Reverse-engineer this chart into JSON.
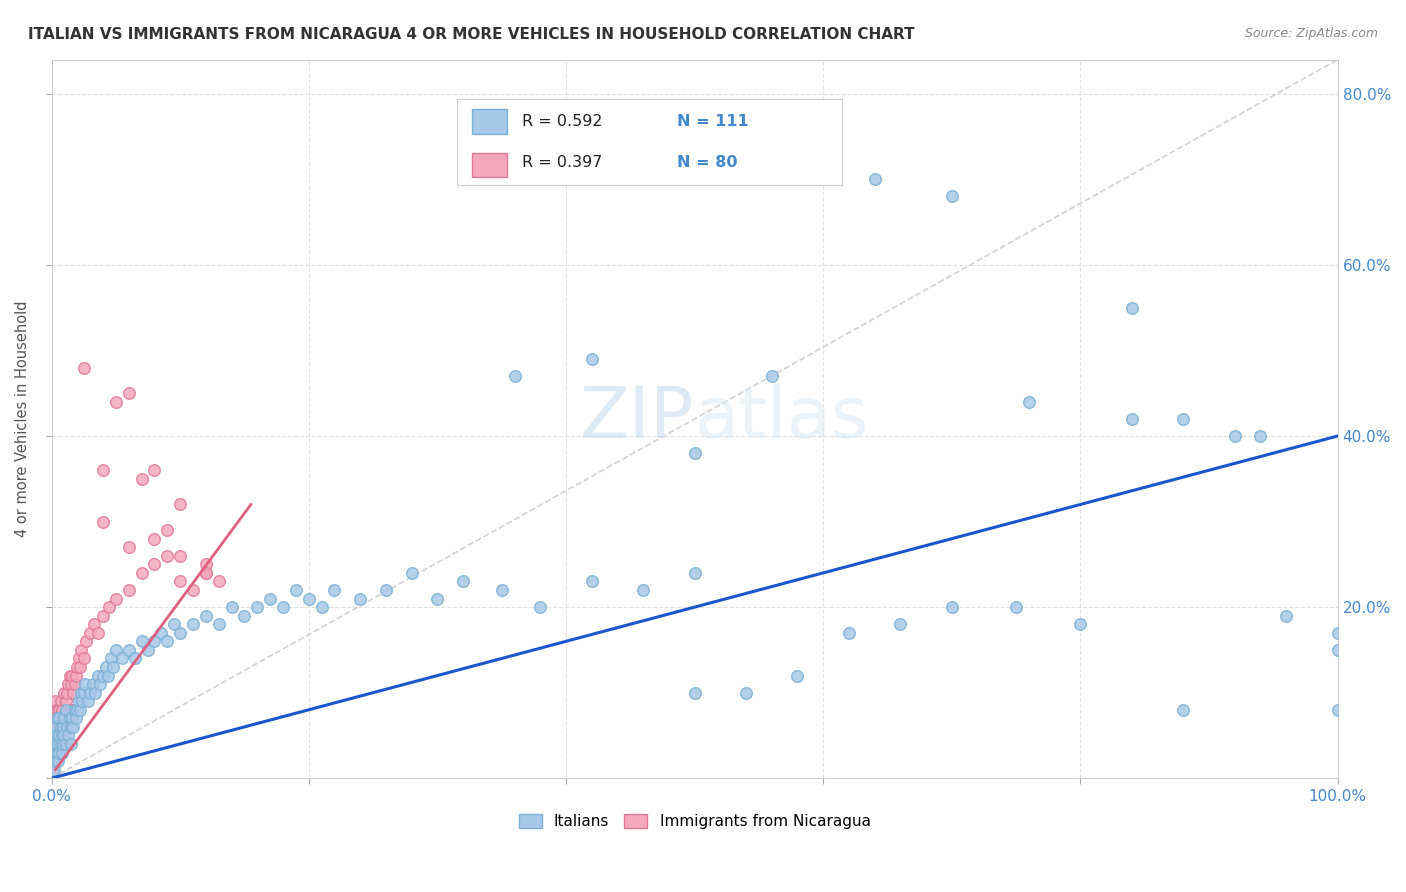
{
  "title": "ITALIAN VS IMMIGRANTS FROM NICARAGUA 4 OR MORE VEHICLES IN HOUSEHOLD CORRELATION CHART",
  "source": "Source: ZipAtlas.com",
  "ylabel": "4 or more Vehicles in Household",
  "watermark_zip": "ZIP",
  "watermark_atlas": "atlas",
  "legend1_r": "R = 0.592",
  "legend1_n": "N = 111",
  "legend2_r": "R = 0.397",
  "legend2_n": "N = 80",
  "blue_face": "#a8c8e8",
  "blue_edge": "#7aafd4",
  "pink_face": "#f4a8be",
  "pink_edge": "#e07898",
  "blue_line": "#1a56cc",
  "pink_line": "#e06080",
  "diag_color": "#cccccc",
  "tick_color": "#4488cc",
  "ylabel_color": "#555555",
  "title_color": "#333333",
  "grid_color": "#dddddd",
  "xlim": [
    0.0,
    1.0
  ],
  "ylim": [
    0.0,
    0.84
  ],
  "scatter_size": 70,
  "blue_trend_x": [
    0.0,
    1.0
  ],
  "blue_trend_y": [
    0.0,
    0.4
  ],
  "pink_trend_x": [
    0.003,
    0.155
  ],
  "pink_trend_y": [
    0.01,
    0.32
  ],
  "blue_x": [
    0.001,
    0.001,
    0.002,
    0.002,
    0.002,
    0.003,
    0.003,
    0.003,
    0.004,
    0.004,
    0.004,
    0.005,
    0.005,
    0.006,
    0.006,
    0.006,
    0.007,
    0.007,
    0.008,
    0.008,
    0.009,
    0.009,
    0.01,
    0.01,
    0.011,
    0.011,
    0.012,
    0.013,
    0.014,
    0.015,
    0.015,
    0.016,
    0.017,
    0.018,
    0.019,
    0.02,
    0.021,
    0.022,
    0.023,
    0.024,
    0.025,
    0.026,
    0.028,
    0.03,
    0.032,
    0.034,
    0.036,
    0.038,
    0.04,
    0.042,
    0.044,
    0.046,
    0.048,
    0.05,
    0.055,
    0.06,
    0.065,
    0.07,
    0.075,
    0.08,
    0.085,
    0.09,
    0.095,
    0.1,
    0.11,
    0.12,
    0.13,
    0.14,
    0.15,
    0.16,
    0.17,
    0.18,
    0.19,
    0.2,
    0.21,
    0.22,
    0.24,
    0.26,
    0.28,
    0.3,
    0.32,
    0.35,
    0.38,
    0.42,
    0.46,
    0.5,
    0.36,
    0.42,
    0.5,
    0.56,
    0.64,
    0.7,
    0.76,
    0.84,
    0.88,
    0.92,
    0.96,
    1.0,
    1.0,
    1.0,
    0.94,
    0.88,
    0.84,
    0.8,
    0.75,
    0.7,
    0.66,
    0.62,
    0.58,
    0.54,
    0.5
  ],
  "blue_y": [
    0.02,
    0.04,
    0.01,
    0.03,
    0.05,
    0.02,
    0.04,
    0.06,
    0.03,
    0.05,
    0.07,
    0.02,
    0.04,
    0.03,
    0.05,
    0.07,
    0.04,
    0.06,
    0.03,
    0.05,
    0.04,
    0.06,
    0.05,
    0.07,
    0.04,
    0.08,
    0.06,
    0.05,
    0.07,
    0.04,
    0.06,
    0.07,
    0.06,
    0.08,
    0.07,
    0.08,
    0.09,
    0.08,
    0.1,
    0.09,
    0.1,
    0.11,
    0.09,
    0.1,
    0.11,
    0.1,
    0.12,
    0.11,
    0.12,
    0.13,
    0.12,
    0.14,
    0.13,
    0.15,
    0.14,
    0.15,
    0.14,
    0.16,
    0.15,
    0.16,
    0.17,
    0.16,
    0.18,
    0.17,
    0.18,
    0.19,
    0.18,
    0.2,
    0.19,
    0.2,
    0.21,
    0.2,
    0.22,
    0.21,
    0.2,
    0.22,
    0.21,
    0.22,
    0.24,
    0.21,
    0.23,
    0.22,
    0.2,
    0.23,
    0.22,
    0.24,
    0.47,
    0.49,
    0.38,
    0.47,
    0.7,
    0.68,
    0.44,
    0.55,
    0.08,
    0.4,
    0.19,
    0.15,
    0.08,
    0.17,
    0.4,
    0.42,
    0.42,
    0.18,
    0.2,
    0.2,
    0.18,
    0.17,
    0.12,
    0.1,
    0.1
  ],
  "pink_x": [
    0.001,
    0.001,
    0.001,
    0.002,
    0.002,
    0.002,
    0.002,
    0.003,
    0.003,
    0.003,
    0.003,
    0.004,
    0.004,
    0.004,
    0.005,
    0.005,
    0.005,
    0.006,
    0.006,
    0.006,
    0.007,
    0.007,
    0.007,
    0.008,
    0.008,
    0.008,
    0.009,
    0.009,
    0.01,
    0.01,
    0.01,
    0.011,
    0.011,
    0.012,
    0.012,
    0.013,
    0.013,
    0.014,
    0.014,
    0.015,
    0.015,
    0.016,
    0.016,
    0.017,
    0.018,
    0.019,
    0.02,
    0.021,
    0.022,
    0.023,
    0.025,
    0.027,
    0.03,
    0.033,
    0.036,
    0.04,
    0.045,
    0.05,
    0.06,
    0.07,
    0.08,
    0.09,
    0.1,
    0.11,
    0.12,
    0.13,
    0.025,
    0.04,
    0.05,
    0.06,
    0.07,
    0.08,
    0.09,
    0.1,
    0.12,
    0.04,
    0.06,
    0.08,
    0.1,
    0.12
  ],
  "pink_y": [
    0.01,
    0.03,
    0.05,
    0.02,
    0.04,
    0.06,
    0.08,
    0.03,
    0.05,
    0.07,
    0.09,
    0.04,
    0.06,
    0.08,
    0.03,
    0.05,
    0.07,
    0.04,
    0.06,
    0.08,
    0.05,
    0.07,
    0.09,
    0.04,
    0.06,
    0.08,
    0.05,
    0.07,
    0.04,
    0.06,
    0.1,
    0.07,
    0.09,
    0.06,
    0.1,
    0.07,
    0.11,
    0.08,
    0.12,
    0.07,
    0.11,
    0.08,
    0.12,
    0.1,
    0.11,
    0.12,
    0.13,
    0.14,
    0.13,
    0.15,
    0.14,
    0.16,
    0.17,
    0.18,
    0.17,
    0.19,
    0.2,
    0.21,
    0.22,
    0.24,
    0.25,
    0.26,
    0.23,
    0.22,
    0.24,
    0.23,
    0.48,
    0.36,
    0.44,
    0.45,
    0.35,
    0.36,
    0.29,
    0.32,
    0.25,
    0.3,
    0.27,
    0.28,
    0.26,
    0.24
  ]
}
